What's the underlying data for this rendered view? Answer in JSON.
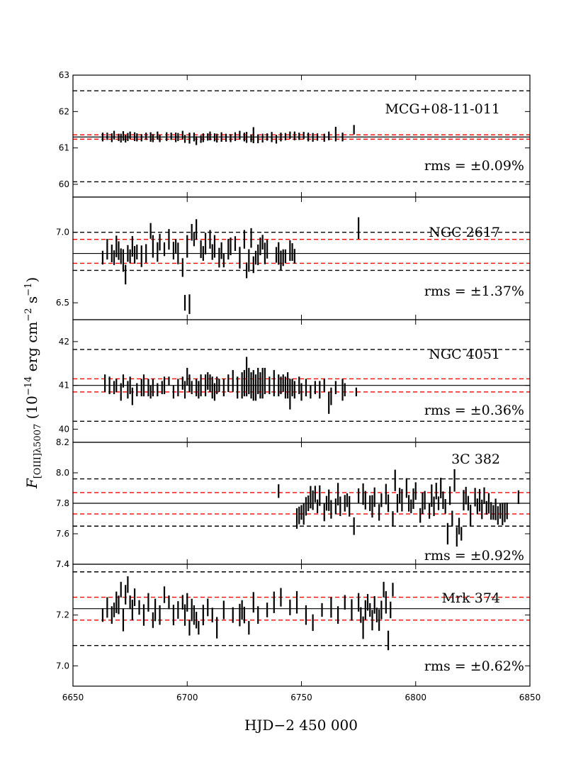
{
  "xlabel": "HJD−2 450 000",
  "ylabel": "F[OIII]λ5007 (10⁻¹⁴ erg cm⁻² s⁻¹)",
  "ylabel_parts": {
    "main": "F",
    "sub": "[OIII]λ5007",
    "paren": " (10",
    "exp1": "−14",
    "mid": " erg cm",
    "exp2": "−2",
    "mid2": " s",
    "exp3": "−1",
    "close": ")"
  },
  "xlim": [
    6650,
    6850
  ],
  "xticks": [
    6650,
    6700,
    6750,
    6800,
    6850
  ],
  "xtick_labels": [
    "6650",
    "6700",
    "6750",
    "6800",
    "6850"
  ],
  "colors": {
    "mean_line": "#000000",
    "black_dash": "#000000",
    "red_dash": "#ff0000",
    "errorbar": "#000000"
  },
  "chart_data": [
    {
      "type": "scatter",
      "name": "MCG+08-11-011",
      "rms_label": "rms = ±0.09%",
      "ylim": [
        59.65,
        63.0
      ],
      "yticks": [
        60,
        61,
        62,
        63
      ],
      "ytick_labels": [
        "60",
        "61",
        "62",
        "63"
      ],
      "mean": 61.3,
      "black_dashed": [
        60.07,
        62.57
      ],
      "red_dashed": [
        61.24,
        61.36
      ],
      "x": [
        6663,
        6665,
        6667,
        6668,
        6670,
        6671,
        6672,
        6673,
        6674,
        6675,
        6677,
        6678,
        6680,
        6682,
        6684,
        6685,
        6687,
        6688,
        6691,
        6693,
        6695,
        6696,
        6698,
        6699,
        6701,
        6703,
        6704,
        6706,
        6707,
        6709,
        6710,
        6712,
        6713,
        6715,
        6717,
        6719,
        6721,
        6723,
        6725,
        6726,
        6728,
        6729,
        6731,
        6733,
        6735,
        6737,
        6739,
        6741,
        6743,
        6745,
        6747,
        6749,
        6751,
        6753,
        6755,
        6757,
        6760,
        6762,
        6765,
        6768,
        6773
      ],
      "y": [
        61.3,
        61.32,
        61.28,
        61.35,
        61.29,
        61.27,
        61.33,
        61.25,
        61.3,
        61.35,
        61.31,
        61.29,
        61.28,
        61.32,
        61.3,
        61.27,
        61.34,
        61.26,
        61.31,
        61.32,
        61.29,
        61.3,
        61.35,
        61.25,
        61.27,
        61.3,
        61.2,
        61.24,
        61.28,
        61.3,
        61.33,
        61.29,
        61.27,
        61.3,
        61.28,
        61.27,
        61.31,
        61.35,
        61.3,
        61.29,
        61.26,
        61.35,
        61.25,
        61.27,
        61.3,
        61.3,
        61.24,
        61.3,
        61.31,
        61.35,
        61.33,
        61.32,
        61.34,
        61.3,
        61.29,
        61.3,
        61.28,
        61.33,
        61.38,
        61.3,
        61.5
      ],
      "err": [
        0.12,
        0.1,
        0.12,
        0.12,
        0.1,
        0.12,
        0.13,
        0.1,
        0.11,
        0.1,
        0.12,
        0.11,
        0.1,
        0.1,
        0.13,
        0.11,
        0.11,
        0.1,
        0.12,
        0.1,
        0.13,
        0.11,
        0.12,
        0.11,
        0.15,
        0.12,
        0.12,
        0.1,
        0.12,
        0.1,
        0.12,
        0.11,
        0.12,
        0.13,
        0.11,
        0.11,
        0.12,
        0.12,
        0.12,
        0.15,
        0.1,
        0.22,
        0.12,
        0.12,
        0.1,
        0.14,
        0.12,
        0.12,
        0.1,
        0.1,
        0.12,
        0.1,
        0.1,
        0.12,
        0.12,
        0.1,
        0.11,
        0.12,
        0.2,
        0.12,
        0.13
      ]
    },
    {
      "type": "scatter",
      "name": "NGC 2617",
      "rms_label": "rms = ±1.37%",
      "ylim": [
        6.38,
        7.25
      ],
      "yticks": [
        6.5,
        7.0
      ],
      "ytick_labels": [
        "6.5",
        "7.0"
      ],
      "mean": 6.85,
      "black_dashed": [
        6.73,
        7.0
      ],
      "red_dashed": [
        6.78,
        6.95
      ],
      "x": [
        6663,
        6665,
        6667,
        6668,
        6669,
        6670,
        6671,
        6672,
        6673,
        6674,
        6675,
        6676,
        6677,
        6678,
        6680,
        6682,
        6684,
        6685,
        6687,
        6688,
        6690,
        6692,
        6694,
        6695,
        6696,
        6698,
        6699,
        6700,
        6701,
        6702,
        6703,
        6704,
        6706,
        6707,
        6708,
        6710,
        6711,
        6712,
        6714,
        6715,
        6716,
        6718,
        6719,
        6721,
        6723,
        6725,
        6726,
        6727,
        6728,
        6729,
        6730,
        6731,
        6732,
        6733,
        6734,
        6735,
        6739,
        6740,
        6741,
        6742,
        6743,
        6745,
        6746,
        6747,
        6775
      ],
      "y": [
        6.82,
        6.88,
        6.85,
        6.82,
        6.9,
        6.87,
        6.83,
        6.8,
        6.7,
        6.85,
        6.83,
        6.9,
        6.84,
        6.86,
        6.83,
        6.85,
        7.01,
        6.9,
        6.86,
        6.93,
        6.88,
        6.95,
        6.87,
        6.9,
        6.85,
        6.75,
        6.5,
        6.9,
        6.49,
        7.0,
        6.95,
        7.02,
        6.88,
        6.85,
        6.92,
        6.95,
        6.86,
        6.9,
        6.82,
        6.87,
        6.8,
        6.88,
        6.9,
        6.92,
        6.82,
        6.95,
        6.73,
        6.8,
        6.96,
        6.77,
        6.82,
        6.84,
        6.9,
        6.93,
        6.85,
        6.88,
        6.84,
        6.85,
        6.8,
        6.82,
        6.83,
        6.87,
        6.86,
        6.83,
        7.03
      ]
    },
    {
      "type": "scatter",
      "name": "NGC 4051",
      "rms_label": "rms = ±0.36%",
      "ylim": [
        39.7,
        42.5
      ],
      "yticks": [
        40,
        41,
        42
      ],
      "ytick_labels": [
        "40",
        "41",
        "42"
      ],
      "mean": 41.0,
      "black_dashed": [
        40.18,
        41.82
      ],
      "red_dashed": [
        40.85,
        41.15
      ],
      "x": [
        6664,
        6666,
        6668,
        6669,
        6671,
        6672,
        6674,
        6675,
        6676,
        6678,
        6680,
        6681,
        6683,
        6684,
        6685,
        6687,
        6689,
        6690,
        6692,
        6694,
        6696,
        6698,
        6699,
        6700,
        6701,
        6702,
        6704,
        6705,
        6706,
        6708,
        6709,
        6710,
        6711,
        6712,
        6713,
        6714,
        6716,
        6718,
        6720,
        6722,
        6724,
        6725,
        6726,
        6727,
        6728,
        6729,
        6730,
        6731,
        6732,
        6733,
        6734,
        6736,
        6738,
        6740,
        6741,
        6742,
        6743,
        6744,
        6745,
        6746,
        6747,
        6749,
        6750,
        6752,
        6754,
        6756,
        6758,
        6760,
        6762,
        6763,
        6765,
        6768,
        6769,
        6774
      ],
      "y": [
        41.05,
        41.0,
        40.95,
        41.0,
        40.85,
        41.1,
        40.9,
        41.0,
        40.75,
        40.9,
        40.95,
        41.0,
        40.95,
        40.85,
        40.95,
        40.9,
        40.95,
        41.0,
        41.1,
        40.85,
        40.95,
        41.05,
        40.9,
        41.2,
        41.05,
        40.95,
        40.95,
        40.9,
        41.0,
        41.0,
        41.1,
        41.05,
        40.95,
        40.85,
        41.0,
        41.0,
        40.95,
        41.05,
        41.1,
        40.95,
        41.0,
        41.05,
        41.2,
        41.1,
        41.0,
        41.0,
        40.95,
        41.1,
        41.0,
        41.05,
        41.1,
        41.0,
        41.05,
        41.0,
        41.0,
        41.05,
        40.95,
        41.0,
        40.8,
        40.95,
        40.9,
        41.0,
        40.85,
        40.95,
        40.85,
        40.95,
        40.9,
        41.0,
        40.6,
        40.75,
        40.95,
        40.9,
        40.9,
        40.85
      ],
      "err": [
        0.2,
        0.2,
        0.15,
        0.15,
        0.2,
        0.15,
        0.2,
        0.2,
        0.2,
        0.15,
        0.2,
        0.25,
        0.2,
        0.15,
        0.2,
        0.15,
        0.15,
        0.2,
        0.1,
        0.15,
        0.2,
        0.15,
        0.2,
        0.2,
        0.2,
        0.15,
        0.2,
        0.2,
        0.25,
        0.25,
        0.2,
        0.2,
        0.25,
        0.2,
        0.2,
        0.15,
        0.2,
        0.2,
        0.25,
        0.25,
        0.3,
        0.3,
        0.45,
        0.3,
        0.3,
        0.35,
        0.3,
        0.3,
        0.3,
        0.35,
        0.3,
        0.2,
        0.3,
        0.25,
        0.2,
        0.2,
        0.25,
        0.3,
        0.35,
        0.2,
        0.2,
        0.2,
        0.2,
        0.2,
        0.15,
        0.15,
        0.2,
        0.15,
        0.25,
        0.2,
        0.15,
        0.25,
        0.15,
        0.1
      ]
    },
    {
      "type": "scatter",
      "name": "3C 382",
      "rms_label": "rms = ±0.92%",
      "ylim": [
        7.4,
        8.2
      ],
      "yticks": [
        7.4,
        7.6,
        7.8,
        8.0,
        8.2
      ],
      "ytick_labels": [
        "7.4",
        "7.6",
        "7.8",
        "8.0",
        "8.2"
      ],
      "mean": 7.8,
      "black_dashed": [
        7.65,
        7.96
      ],
      "red_dashed": [
        7.73,
        7.87
      ],
      "x": [
        6740,
        6748,
        6749,
        6750,
        6751,
        6752,
        6753,
        6754,
        6755,
        6756,
        6757,
        6758,
        6760,
        6761,
        6762,
        6763,
        6765,
        6766,
        6767,
        6769,
        6770,
        6771,
        6773,
        6775,
        6777,
        6778,
        6780,
        6781,
        6782,
        6784,
        6785,
        6787,
        6788,
        6790,
        6791,
        6792,
        6793,
        6794,
        6796,
        6797,
        6798,
        6799,
        6800,
        6802,
        6803,
        6804,
        6806,
        6807,
        6808,
        6809,
        6810,
        6811,
        6812,
        6813,
        6814,
        6815,
        6816,
        6817,
        6818,
        6819,
        6820,
        6821,
        6822,
        6823,
        6824,
        6826,
        6827,
        6828,
        6829,
        6830,
        6831,
        6832,
        6833,
        6834,
        6835,
        6836,
        6837,
        6838,
        6839,
        6840,
        6845
      ],
      "y": [
        7.88,
        7.7,
        7.72,
        7.74,
        7.73,
        7.78,
        7.8,
        7.84,
        7.82,
        7.86,
        7.78,
        7.85,
        7.74,
        7.8,
        7.82,
        7.76,
        7.78,
        7.86,
        7.78,
        7.8,
        7.82,
        7.78,
        7.65,
        7.85,
        7.86,
        7.82,
        7.8,
        7.78,
        7.84,
        7.74,
        7.82,
        7.86,
        7.8,
        7.7,
        7.95,
        7.8,
        7.85,
        7.82,
        7.9,
        7.8,
        7.78,
        7.83,
        7.88,
        7.72,
        7.8,
        7.82,
        7.75,
        7.85,
        7.78,
        7.88,
        7.8,
        7.9,
        7.82,
        7.78,
        7.6,
        7.85,
        7.7,
        7.95,
        7.58,
        7.65,
        7.6,
        7.82,
        7.85,
        7.8,
        7.72,
        7.84,
        7.78,
        7.82,
        7.76,
        7.85,
        7.77,
        7.8,
        7.75,
        7.74,
        7.76,
        7.72,
        7.75,
        7.73,
        7.74,
        7.75,
        7.84
      ]
    },
    {
      "type": "scatter",
      "name": "Mrk 374",
      "rms_label": "rms = ±0.62%",
      "ylim": [
        6.92,
        7.4
      ],
      "yticks": [
        7.0,
        7.2,
        7.4
      ],
      "ytick_labels": [
        "7.0",
        "7.2",
        "7.4"
      ],
      "mean": 7.225,
      "black_dashed": [
        7.08,
        7.37
      ],
      "red_dashed": [
        7.18,
        7.27
      ],
      "x": [
        6663,
        6665,
        6667,
        6668,
        6669,
        6670,
        6671,
        6672,
        6673,
        6674,
        6675,
        6676,
        6677,
        6679,
        6681,
        6683,
        6685,
        6686,
        6688,
        6690,
        6692,
        6694,
        6696,
        6698,
        6699,
        6700,
        6701,
        6702,
        6703,
        6704,
        6705,
        6707,
        6709,
        6711,
        6713,
        6716,
        6720,
        6723,
        6724,
        6725,
        6727,
        6729,
        6731,
        6735,
        6738,
        6741,
        6745,
        6748,
        6752,
        6755,
        6759,
        6763,
        6766,
        6769,
        6772,
        6775,
        6776,
        6777,
        6778,
        6779,
        6780,
        6781,
        6782,
        6783,
        6784,
        6785,
        6786,
        6787,
        6788,
        6789,
        6790
      ],
      "y": [
        7.2,
        7.23,
        7.2,
        7.22,
        7.25,
        7.24,
        7.3,
        7.18,
        7.28,
        7.32,
        7.25,
        7.22,
        7.27,
        7.23,
        7.2,
        7.25,
        7.18,
        7.22,
        7.2,
        7.28,
        7.25,
        7.2,
        7.22,
        7.25,
        7.2,
        7.25,
        7.15,
        7.22,
        7.2,
        7.18,
        7.15,
        7.2,
        7.23,
        7.2,
        7.15,
        7.22,
        7.2,
        7.2,
        7.22,
        7.2,
        7.15,
        7.25,
        7.2,
        7.22,
        7.25,
        7.27,
        7.23,
        7.25,
        7.2,
        7.17,
        7.22,
        7.23,
        7.2,
        7.25,
        7.22,
        7.25,
        7.2,
        7.15,
        7.22,
        7.25,
        7.22,
        7.18,
        7.24,
        7.2,
        7.18,
        7.22,
        7.3,
        7.25,
        7.1,
        7.22,
        7.3
      ]
    }
  ]
}
